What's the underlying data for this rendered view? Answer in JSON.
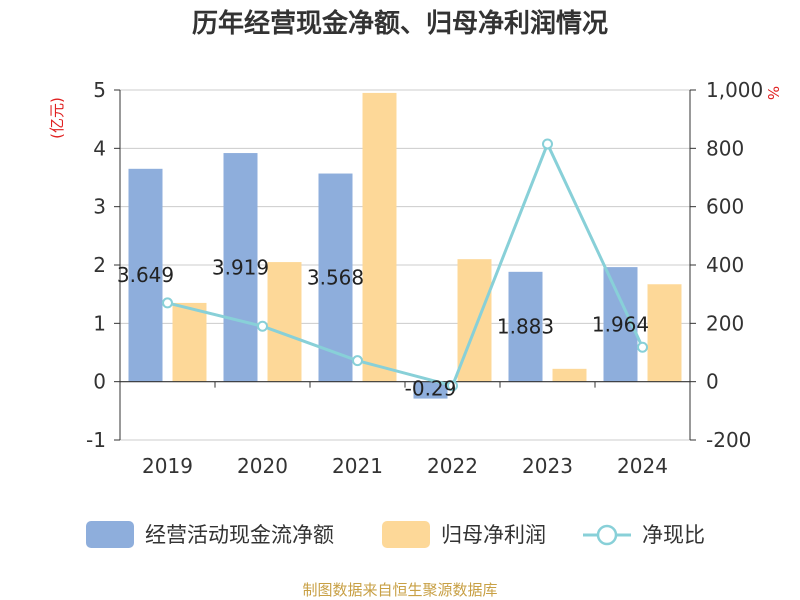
{
  "chart_data": {
    "type": "bar",
    "title": "历年经营现金净额、归母净利润情况",
    "categories": [
      "2019",
      "2020",
      "2021",
      "2022",
      "2023",
      "2024"
    ],
    "left_axis": {
      "unit": "(亿元)",
      "min": -1,
      "max": 5,
      "ticks": [
        "-1",
        "0",
        "1",
        "2",
        "3",
        "4",
        "5"
      ]
    },
    "right_axis": {
      "unit": "%",
      "min": -200,
      "max": 1000,
      "ticks": [
        "-200",
        "0",
        "200",
        "400",
        "600",
        "800",
        "1,000"
      ]
    },
    "series": [
      {
        "name": "经营活动现金流净额",
        "type": "bar",
        "axis": "left",
        "color": "#8eaedc",
        "values": [
          3.649,
          3.919,
          3.568,
          -0.29,
          1.883,
          1.964
        ],
        "labels": [
          "3.649",
          "3.919",
          "3.568",
          "-0.29",
          "1.883",
          "1.964"
        ]
      },
      {
        "name": "归母净利润",
        "type": "bar",
        "axis": "left",
        "color": "#fdd898",
        "values": [
          1.35,
          2.05,
          4.95,
          2.1,
          0.22,
          1.67
        ]
      },
      {
        "name": "净现比",
        "type": "line",
        "axis": "right",
        "color": "#88d0d8",
        "values": [
          270,
          190,
          72,
          -14,
          815,
          118
        ]
      }
    ],
    "source": "制图数据来自恒生聚源数据库",
    "source_color": "#c8a045",
    "unit_color": "#e02020"
  }
}
